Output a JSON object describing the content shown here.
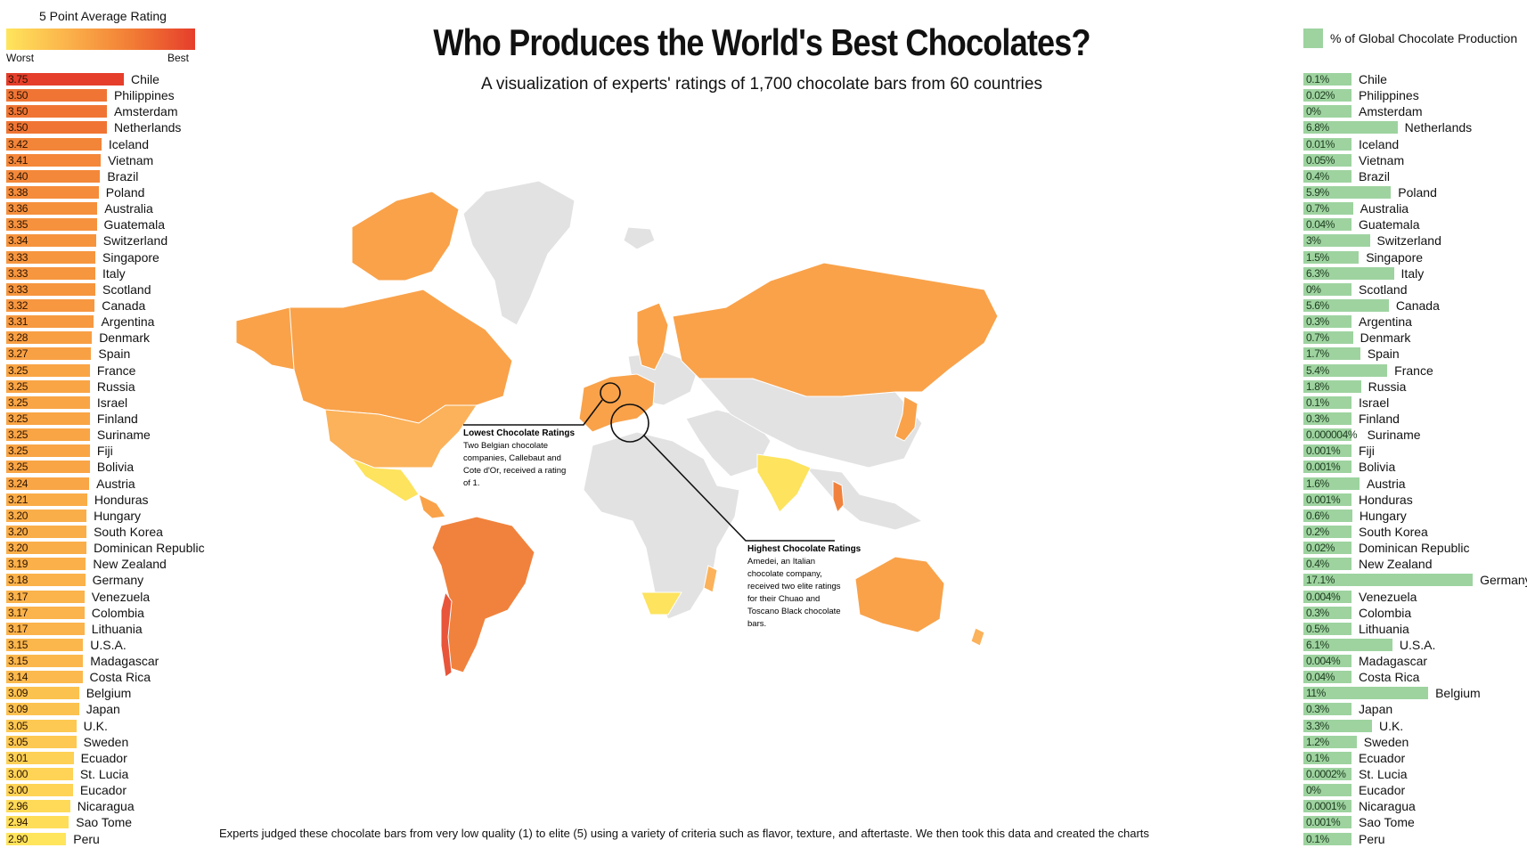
{
  "title": "Who Produces the World's Best Chocolates?",
  "subtitle": "A visualization of experts' ratings of 1,700 chocolate bars from 60 countries",
  "rating_scale": {
    "title": "5 Point Average Rating",
    "low_label": "Worst",
    "high_label": "Best"
  },
  "production_legend": {
    "label": "% of Global Chocolate Production",
    "color": "#9ed3a0"
  },
  "callouts": {
    "lowest": {
      "title": "Lowest Chocolate Ratings",
      "lines": [
        "Two Belgian chocolate",
        "companies, Callebaut and",
        "Cote d'Or, received a rating",
        "of 1."
      ]
    },
    "highest": {
      "title": "Highest Chocolate Ratings",
      "lines": [
        "Amedei, an Italian",
        "chocolate company,",
        "received two elite ratings",
        "for their Chuao and",
        "Toscano Black chocolate",
        "bars."
      ]
    }
  },
  "bottom_text": "Experts judged these chocolate bars from very low quality (1) to elite (5) using a variety of criteria such as flavor, texture, and aftertaste. We then took this data and created the charts",
  "colors": {
    "land_no_data": "#e2e2e2",
    "map_orange": "#f9a24a",
    "map_deep": "#f0823d",
    "map_yellow": "#fde35e"
  },
  "chart_data": [
    {
      "type": "bar",
      "title": "5 Point Average Rating",
      "categories": [
        "Chile",
        "Philippines",
        "Amsterdam",
        "Netherlands",
        "Iceland",
        "Vietnam",
        "Brazil",
        "Poland",
        "Australia",
        "Guatemala",
        "Switzerland",
        "Singapore",
        "Italy",
        "Scotland",
        "Canada",
        "Argentina",
        "Denmark",
        "Spain",
        "France",
        "Russia",
        "Israel",
        "Finland",
        "Suriname",
        "Fiji",
        "Bolivia",
        "Austria",
        "Honduras",
        "Hungary",
        "South Korea",
        "Dominican Republic",
        "New Zealand",
        "Germany",
        "Venezuela",
        "Colombia",
        "Lithuania",
        "U.S.A.",
        "Madagascar",
        "Costa Rica",
        "Belgium",
        "Japan",
        "U.K.",
        "Sweden",
        "Ecuador",
        "St. Lucia",
        "Eucador",
        "Nicaragua",
        "Sao Tome",
        "Peru"
      ],
      "values": [
        3.75,
        3.5,
        3.5,
        3.5,
        3.42,
        3.41,
        3.4,
        3.38,
        3.36,
        3.35,
        3.34,
        3.33,
        3.33,
        3.33,
        3.32,
        3.31,
        3.28,
        3.27,
        3.25,
        3.25,
        3.25,
        3.25,
        3.25,
        3.25,
        3.25,
        3.24,
        3.21,
        3.2,
        3.2,
        3.2,
        3.19,
        3.18,
        3.17,
        3.17,
        3.17,
        3.15,
        3.15,
        3.14,
        3.09,
        3.09,
        3.05,
        3.05,
        3.01,
        3.0,
        3.0,
        2.96,
        2.94,
        2.9
      ],
      "value_labels": [
        "3.75",
        "3.50",
        "3.50",
        "3.50",
        "3.42",
        "3.41",
        "3.40",
        "3.38",
        "3.36",
        "3.35",
        "3.34",
        "3.33",
        "3.33",
        "3.33",
        "3.32",
        "3.31",
        "3.28",
        "3.27",
        "3.25",
        "3.25",
        "3.25",
        "3.25",
        "3.25",
        "3.25",
        "3.25",
        "3.24",
        "3.21",
        "3.20",
        "3.20",
        "3.20",
        "3.19",
        "3.18",
        "3.17",
        "3.17",
        "3.17",
        "3.15",
        "3.15",
        "3.14",
        "3.09",
        "3.09",
        "3.05",
        "3.05",
        "3.01",
        "3.00",
        "3.00",
        "2.96",
        "2.94",
        "2.90"
      ]
    },
    {
      "type": "bar",
      "title": "% of Global Chocolate Production",
      "categories": [
        "Chile",
        "Philippines",
        "Amsterdam",
        "Netherlands",
        "Iceland",
        "Vietnam",
        "Brazil",
        "Poland",
        "Australia",
        "Guatemala",
        "Switzerland",
        "Singapore",
        "Italy",
        "Scotland",
        "Canada",
        "Argentina",
        "Denmark",
        "Spain",
        "France",
        "Russia",
        "Israel",
        "Finland",
        "Suriname",
        "Fiji",
        "Bolivia",
        "Austria",
        "Honduras",
        "Hungary",
        "South Korea",
        "Dominican Republic",
        "New Zealand",
        "Germany",
        "Venezuela",
        "Colombia",
        "Lithuania",
        "U.S.A.",
        "Madagascar",
        "Costa Rica",
        "Belgium",
        "Japan",
        "U.K.",
        "Sweden",
        "Ecuador",
        "St. Lucia",
        "Eucador",
        "Nicaragua",
        "Sao Tome",
        "Peru"
      ],
      "values": [
        0.1,
        0.02,
        0,
        6.8,
        0.01,
        0.05,
        0.4,
        5.9,
        0.7,
        0.04,
        3,
        1.5,
        6.3,
        0,
        5.6,
        0.3,
        0.7,
        1.7,
        5.4,
        1.8,
        0.1,
        0.3,
        4e-06,
        0.001,
        0.001,
        1.6,
        0.001,
        0.6,
        0.2,
        0.02,
        0.4,
        17.1,
        0.004,
        0.3,
        0.5,
        6.1,
        0.004,
        0.04,
        11,
        0.3,
        3.3,
        1.2,
        0.1,
        0.0002,
        0,
        0.0001,
        0.001,
        0.1
      ],
      "value_labels": [
        "0.1%",
        "0.02%",
        "0%",
        "6.8%",
        "0.01%",
        "0.05%",
        "0.4%",
        "5.9%",
        "0.7%",
        "0.04%",
        "3%",
        "1.5%",
        "6.3%",
        "0%",
        "5.6%",
        "0.3%",
        "0.7%",
        "1.7%",
        "5.4%",
        "1.8%",
        "0.1%",
        "0.3%",
        "0.000004%",
        "0.001%",
        "0.001%",
        "1.6%",
        "0.001%",
        "0.6%",
        "0.2%",
        "0.02%",
        "0.4%",
        "17.1%",
        "0.004%",
        "0.3%",
        "0.5%",
        "6.1%",
        "0.004%",
        "0.04%",
        "11%",
        "0.3%",
        "3.3%",
        "1.2%",
        "0.1%",
        "0.0002%",
        "0%",
        "0.0001%",
        "0.001%",
        "0.1%"
      ]
    }
  ]
}
